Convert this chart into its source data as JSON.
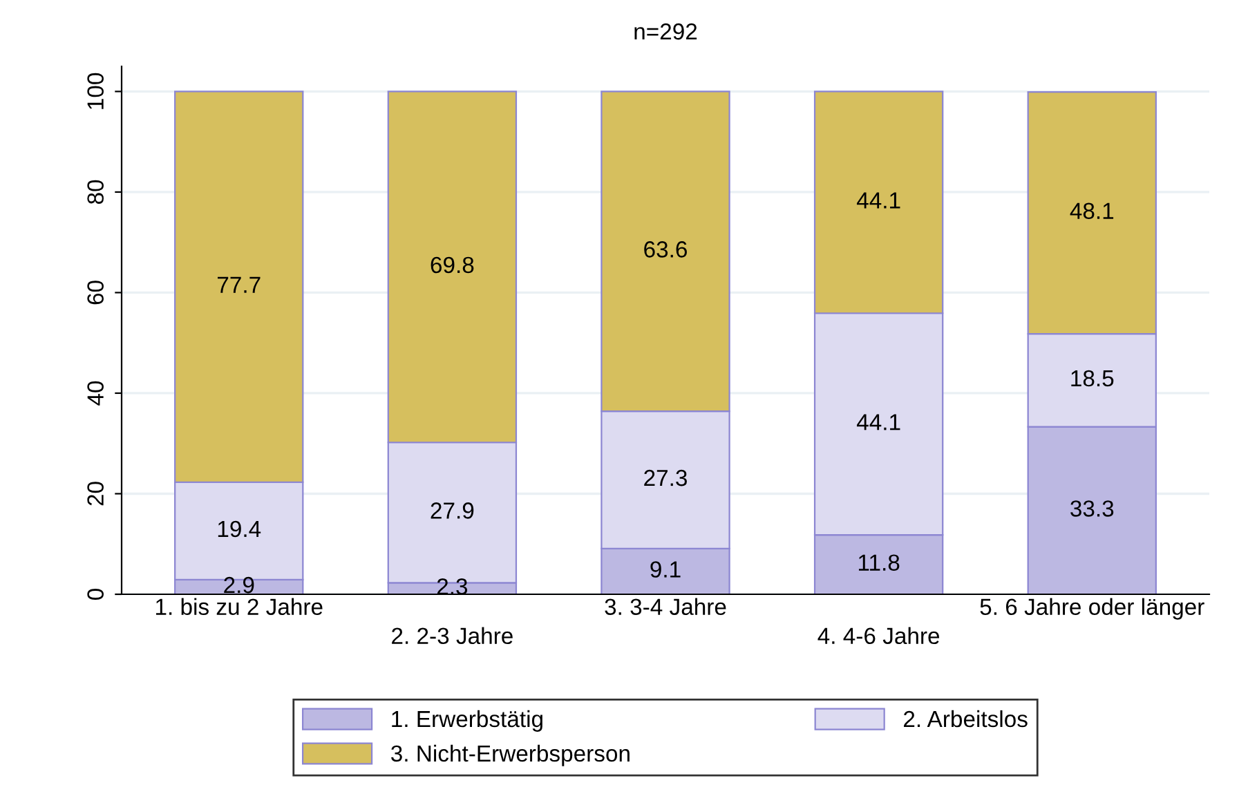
{
  "chart_data": {
    "type": "bar",
    "title": "n=292",
    "stacked": true,
    "data_labels": true,
    "grid": "y",
    "legend": "bottom",
    "categories": [
      "1. bis zu 2 Jahre",
      "2. 2-3 Jahre",
      "3. 3-4 Jahre",
      "4. 4-6 Jahre",
      "5. 6 Jahre oder länger"
    ],
    "ylim": [
      0,
      105
    ],
    "yticks": [
      0,
      20,
      40,
      60,
      80,
      100
    ],
    "series": [
      {
        "name": "1. Erwerbstätig",
        "color": "#bcb8e2",
        "values": [
          2.9,
          2.3,
          9.1,
          11.8,
          33.3
        ]
      },
      {
        "name": "2. Arbeitslos",
        "color": "#dddbf1",
        "values": [
          19.4,
          27.9,
          27.3,
          44.1,
          18.5
        ]
      },
      {
        "name": "3. Nicht-Erwerbsperson",
        "color": "#d6bf5e",
        "values": [
          77.7,
          69.8,
          63.6,
          44.1,
          48.1
        ]
      }
    ]
  }
}
